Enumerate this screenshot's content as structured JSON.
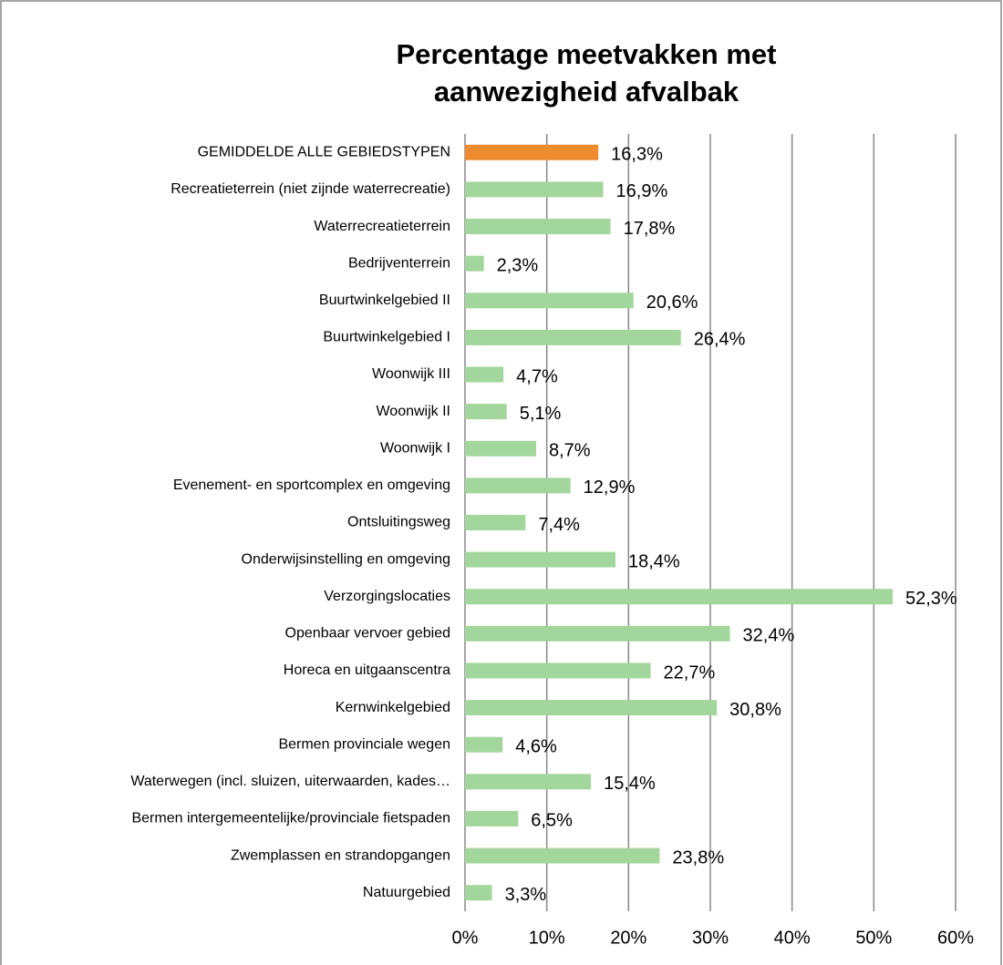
{
  "chart_data": {
    "type": "barh",
    "title": [
      "Percentage meetvakken met",
      "aanwezigheid afvalbak"
    ],
    "categories": [
      "GEMIDDELDE ALLE GEBIEDSTYPEN",
      "Recreatieterrein (niet zijnde waterrecreatie)",
      "Waterrecreatieterrein",
      "Bedrijventerrein",
      "Buurtwinkelgebied II",
      "Buurtwinkelgebied I",
      "Woonwijk III",
      "Woonwijk II",
      "Woonwijk I",
      "Evenement- en sportcomplex en omgeving",
      "Ontsluitingsweg",
      "Onderwijsinstelling en omgeving",
      "Verzorgingslocaties",
      "Openbaar vervoer gebied",
      "Horeca en uitgaanscentra",
      "Kernwinkelgebied",
      "Bermen provinciale wegen",
      "Waterwegen (incl. sluizen, uiterwaarden, kades…",
      "Bermen intergemeentelijke/provinciale fietspaden",
      "Zwemplassen en strandopgangen",
      "Natuurgebied"
    ],
    "values": [
      16.3,
      16.9,
      17.8,
      2.3,
      20.6,
      26.4,
      4.7,
      5.1,
      8.7,
      12.9,
      7.4,
      18.4,
      52.3,
      32.4,
      22.7,
      30.8,
      4.6,
      15.4,
      6.5,
      23.8,
      3.3
    ],
    "value_labels": [
      "16,3%",
      "16,9%",
      "17,8%",
      "2,3%",
      "20,6%",
      "26,4%",
      "4,7%",
      "5,1%",
      "8,7%",
      "12,9%",
      "7,4%",
      "18,4%",
      "52,3%",
      "32,4%",
      "22,7%",
      "30,8%",
      "4,6%",
      "15,4%",
      "6,5%",
      "23,8%",
      "3,3%"
    ],
    "colors": [
      "#ed8b2f",
      "#a3d69c",
      "#a3d69c",
      "#a3d69c",
      "#a3d69c",
      "#a3d69c",
      "#a3d69c",
      "#a3d69c",
      "#a3d69c",
      "#a3d69c",
      "#a3d69c",
      "#a3d69c",
      "#a3d69c",
      "#a3d69c",
      "#a3d69c",
      "#a3d69c",
      "#a3d69c",
      "#a3d69c",
      "#a3d69c",
      "#a3d69c",
      "#a3d69c"
    ],
    "xlim": [
      0,
      60
    ],
    "xticks": [
      {
        "value": 0,
        "label": "0%"
      },
      {
        "value": 10,
        "label": "10%"
      },
      {
        "value": 20,
        "label": "20%"
      },
      {
        "value": 30,
        "label": "30%"
      },
      {
        "value": 40,
        "label": "40%"
      },
      {
        "value": 50,
        "label": "50%"
      },
      {
        "value": 60,
        "label": "60%"
      }
    ],
    "grid": true
  }
}
